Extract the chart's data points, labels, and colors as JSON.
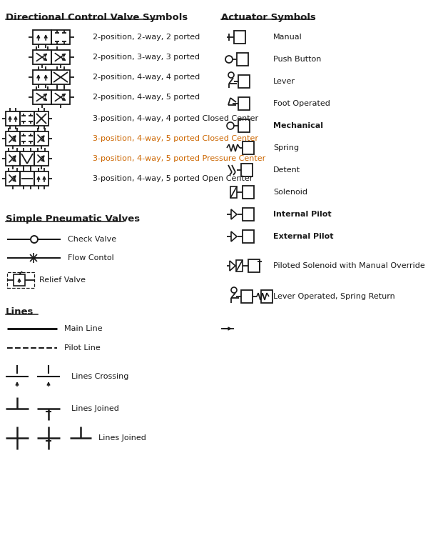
{
  "figsize": [
    6.0,
    7.74
  ],
  "dpi": 100,
  "bg_color": "#ffffff",
  "black": "#1a1a1a",
  "orange": "#cc6600",
  "title_fs": 9.5,
  "label_fs": 8.0,
  "heading_left": "Directional Control Valve Symbols",
  "heading_right": "Actuator Symbols",
  "heading_simple": "Simple Pneumatic Valves",
  "heading_lines": "Lines",
  "dcv_labels": [
    "2-position, 2-way, 2 ported",
    "2-position, 3-way, 3 ported",
    "2-position, 4-way, 4 ported",
    "2-position, 4-way, 5 ported",
    "3-position, 4-way, 4 ported Closed Center",
    "3-position, 4-way, 5 ported Closed Center",
    "3-position, 4-way, 5 ported Pressure Center",
    "3-position, 4-way, 5 ported Open Center"
  ],
  "dcv_colors": [
    "#1a1a1a",
    "#1a1a1a",
    "#1a1a1a",
    "#1a1a1a",
    "#1a1a1a",
    "#cc6600",
    "#cc6600",
    "#1a1a1a"
  ],
  "act_labels": [
    "Manual",
    "Push Button",
    "Lever",
    "Foot Operated",
    "Mechanical",
    "Spring",
    "Detent",
    "Solenoid",
    "Internal Pilot",
    "External Pilot",
    "Piloted Solenoid with Manual Override",
    "Lever Operated, Spring Return"
  ],
  "act_bold": [
    false,
    false,
    false,
    false,
    true,
    false,
    false,
    false,
    true,
    true,
    false,
    false
  ],
  "simple_labels": [
    "Check Valve",
    "Flow Contol",
    "Relief Valve"
  ],
  "line_labels": [
    "Main Line",
    "Pilot Line",
    "Lines Crossing",
    "Lines Joined",
    "Lines Joined"
  ]
}
